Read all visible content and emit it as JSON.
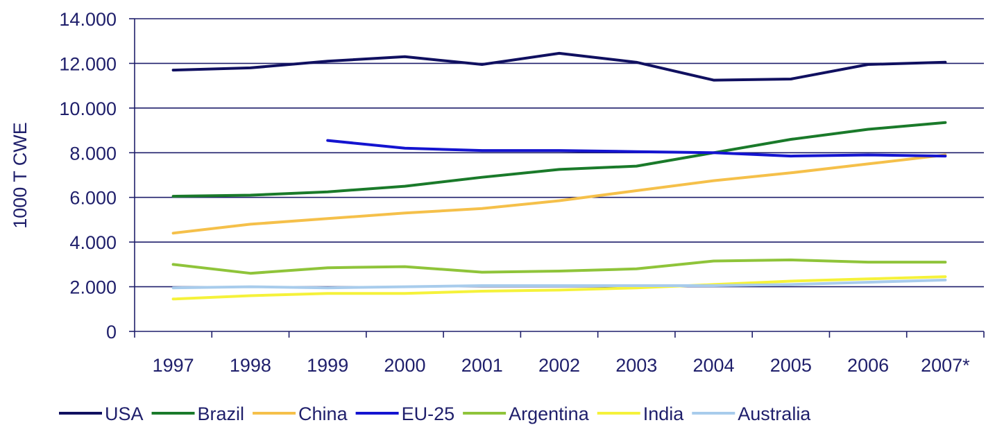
{
  "chart_data": {
    "type": "line",
    "title": "",
    "xlabel": "",
    "ylabel": "1000 T CWE",
    "categories": [
      "1997",
      "1998",
      "1999",
      "2000",
      "2001",
      "2002",
      "2003",
      "2004",
      "2005",
      "2006",
      "2007*"
    ],
    "ylim": [
      0,
      14000
    ],
    "yticks": [
      0,
      2000,
      4000,
      6000,
      8000,
      10000,
      12000,
      14000
    ],
    "ytick_labels": [
      "0",
      "2.000",
      "4.000",
      "6.000",
      "8.000",
      "10.000",
      "12.000",
      "14.000"
    ],
    "grid": "horizontal",
    "legend_position": "bottom",
    "series": [
      {
        "name": "USA",
        "color": "#101060",
        "values": [
          11700,
          11800,
          12100,
          12300,
          11950,
          12450,
          12050,
          11250,
          11300,
          11950,
          12050
        ]
      },
      {
        "name": "Brazil",
        "color": "#1a7a2a",
        "values": [
          6050,
          6100,
          6250,
          6500,
          6900,
          7250,
          7400,
          8000,
          8600,
          9050,
          9350
        ]
      },
      {
        "name": "China",
        "color": "#f5c04a",
        "values": [
          4400,
          4800,
          5050,
          5300,
          5500,
          5850,
          6300,
          6750,
          7100,
          7500,
          7900
        ]
      },
      {
        "name": "EU-25",
        "color": "#1414d0",
        "values": [
          null,
          null,
          8550,
          8200,
          8100,
          8100,
          8050,
          8000,
          7850,
          7900,
          7850
        ]
      },
      {
        "name": "Argentina",
        "color": "#8fc43a",
        "values": [
          3000,
          2600,
          2850,
          2900,
          2650,
          2700,
          2800,
          3150,
          3200,
          3100,
          3100
        ]
      },
      {
        "name": "India",
        "color": "#f5f23a",
        "values": [
          1450,
          1600,
          1700,
          1700,
          1800,
          1850,
          1950,
          2100,
          2250,
          2350,
          2450
        ]
      },
      {
        "name": "Australia",
        "color": "#a8ccec",
        "values": [
          1950,
          2000,
          1950,
          2000,
          2050,
          2050,
          2050,
          2050,
          2100,
          2200,
          2300
        ]
      }
    ]
  }
}
